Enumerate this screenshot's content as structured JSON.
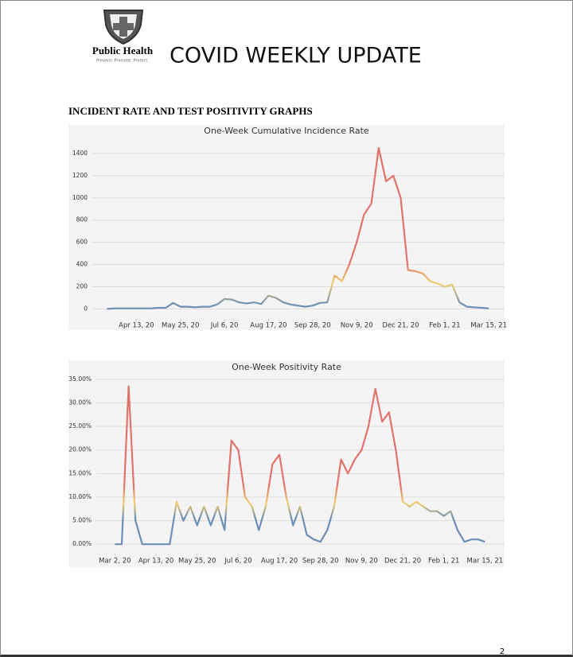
{
  "header": {
    "org": "Public Health",
    "tagline": "Prevent. Promote. Protect.",
    "title": "COVID WEEKLY UPDATE"
  },
  "section_title": "INCIDENT RATE AND TEST POSITIVITY GRAPHS",
  "chart_data": [
    {
      "type": "line",
      "title": "One-Week Cumulative Incidence Rate",
      "x": [
        "2020-03-16",
        "2020-03-23",
        "2020-03-30",
        "2020-04-06",
        "2020-04-13",
        "2020-04-20",
        "2020-04-27",
        "2020-05-04",
        "2020-05-11",
        "2020-05-18",
        "2020-05-25",
        "2020-06-01",
        "2020-06-08",
        "2020-06-15",
        "2020-06-22",
        "2020-06-29",
        "2020-07-06",
        "2020-07-13",
        "2020-07-20",
        "2020-07-27",
        "2020-08-03",
        "2020-08-10",
        "2020-08-17",
        "2020-08-24",
        "2020-08-31",
        "2020-09-07",
        "2020-09-14",
        "2020-09-21",
        "2020-09-28",
        "2020-10-05",
        "2020-10-12",
        "2020-10-19",
        "2020-10-26",
        "2020-11-02",
        "2020-11-09",
        "2020-11-16",
        "2020-11-23",
        "2020-11-30",
        "2020-12-07",
        "2020-12-14",
        "2020-12-21",
        "2020-12-28",
        "2021-01-04",
        "2021-01-11",
        "2021-01-18",
        "2021-01-25",
        "2021-02-01",
        "2021-02-08",
        "2021-02-15",
        "2021-02-22",
        "2021-03-01",
        "2021-03-08",
        "2021-03-15"
      ],
      "series": [
        {
          "values": [
            0,
            5,
            5,
            5,
            5,
            5,
            5,
            10,
            10,
            55,
            20,
            20,
            15,
            20,
            20,
            40,
            90,
            85,
            60,
            50,
            60,
            45,
            120,
            100,
            60,
            40,
            30,
            20,
            30,
            55,
            60,
            300,
            250,
            400,
            600,
            850,
            950,
            1450,
            1150,
            1200,
            1000,
            350,
            340,
            320,
            250,
            230,
            200,
            220,
            60,
            20,
            15,
            10,
            5
          ],
          "colors": [
            "#6d8fb5",
            "#f0d070",
            "#e0736a"
          ]
        }
      ],
      "xlim": [
        "2020-03-02",
        "2021-03-30"
      ],
      "xticks": [
        {
          "value": "2020-04-13",
          "label": "Apr 13, 20"
        },
        {
          "value": "2020-05-25",
          "label": "May 25, 20"
        },
        {
          "value": "2020-07-06",
          "label": "Jul 6, 20"
        },
        {
          "value": "2020-08-17",
          "label": "Aug 17, 20"
        },
        {
          "value": "2020-09-28",
          "label": "Sep 28, 20"
        },
        {
          "value": "2020-11-09",
          "label": "Nov 9, 20"
        },
        {
          "value": "2020-12-21",
          "label": "Dec 21, 20"
        },
        {
          "value": "2021-02-01",
          "label": "Feb 1, 21"
        },
        {
          "value": "2021-03-15",
          "label": "Mar 15, 21"
        }
      ],
      "ylim": [
        -90,
        1500
      ],
      "yticks": [
        0,
        200,
        400,
        600,
        800,
        1000,
        1200,
        1400
      ],
      "grid": true
    },
    {
      "type": "line",
      "title": "One-Week Positivity Rate",
      "x": [
        "2020-03-02",
        "2020-03-09",
        "2020-03-16",
        "2020-03-23",
        "2020-03-30",
        "2020-04-06",
        "2020-04-13",
        "2020-04-20",
        "2020-04-27",
        "2020-05-04",
        "2020-05-11",
        "2020-05-18",
        "2020-05-25",
        "2020-06-01",
        "2020-06-08",
        "2020-06-15",
        "2020-06-22",
        "2020-06-29",
        "2020-07-06",
        "2020-07-13",
        "2020-07-20",
        "2020-07-27",
        "2020-08-03",
        "2020-08-10",
        "2020-08-17",
        "2020-08-24",
        "2020-08-31",
        "2020-09-07",
        "2020-09-14",
        "2020-09-21",
        "2020-09-28",
        "2020-10-05",
        "2020-10-12",
        "2020-10-19",
        "2020-10-26",
        "2020-11-02",
        "2020-11-09",
        "2020-11-16",
        "2020-11-23",
        "2020-11-30",
        "2020-12-07",
        "2020-12-14",
        "2020-12-21",
        "2020-12-28",
        "2021-01-04",
        "2021-01-11",
        "2021-01-18",
        "2021-01-25",
        "2021-02-01",
        "2021-02-08",
        "2021-02-15",
        "2021-02-22",
        "2021-03-01",
        "2021-03-08",
        "2021-03-15"
      ],
      "series": [
        {
          "values": [
            0,
            0,
            33.5,
            5,
            0,
            0,
            0,
            0,
            0,
            9,
            5,
            8,
            4,
            8,
            4,
            8,
            3,
            22,
            20,
            10,
            8,
            3,
            8,
            17,
            19,
            10,
            4,
            8,
            2,
            1,
            0.5,
            3,
            8,
            18,
            15,
            18,
            20,
            25,
            33,
            26,
            28,
            20,
            9,
            8,
            9,
            8,
            7,
            7,
            6,
            7,
            3,
            0.5,
            1,
            1,
            0.5
          ],
          "colors": [
            "#6d8fb5",
            "#f0d070",
            "#e0736a"
          ]
        }
      ],
      "xlim": [
        "2020-02-12",
        "2021-04-04"
      ],
      "xticks": [
        {
          "value": "2020-03-02",
          "label": "Mar 2, 20"
        },
        {
          "value": "2020-04-13",
          "label": "Apr 13, 20"
        },
        {
          "value": "2020-05-25",
          "label": "May 25, 20"
        },
        {
          "value": "2020-07-06",
          "label": "Jul 6, 20"
        },
        {
          "value": "2020-08-17",
          "label": "Aug 17, 20"
        },
        {
          "value": "2020-09-28",
          "label": "Sep 28, 20"
        },
        {
          "value": "2020-11-09",
          "label": "Nov 9, 20"
        },
        {
          "value": "2020-12-21",
          "label": "Dec 21, 20"
        },
        {
          "value": "2021-02-01",
          "label": "Feb 1, 21"
        },
        {
          "value": "2021-03-15",
          "label": "Mar 15, 21"
        }
      ],
      "ylim": [
        -2,
        36
      ],
      "yticks": [
        {
          "value": 0,
          "label": "0.00%"
        },
        {
          "value": 5,
          "label": "5.00%"
        },
        {
          "value": 10,
          "label": "10.00%"
        },
        {
          "value": 15,
          "label": "15.00%"
        },
        {
          "value": 20,
          "label": "20.00%"
        },
        {
          "value": 25,
          "label": "25.00%"
        },
        {
          "value": 30,
          "label": "30.00%"
        },
        {
          "value": 35,
          "label": "35.00%"
        }
      ],
      "grid": true
    }
  ],
  "page_number": "2"
}
